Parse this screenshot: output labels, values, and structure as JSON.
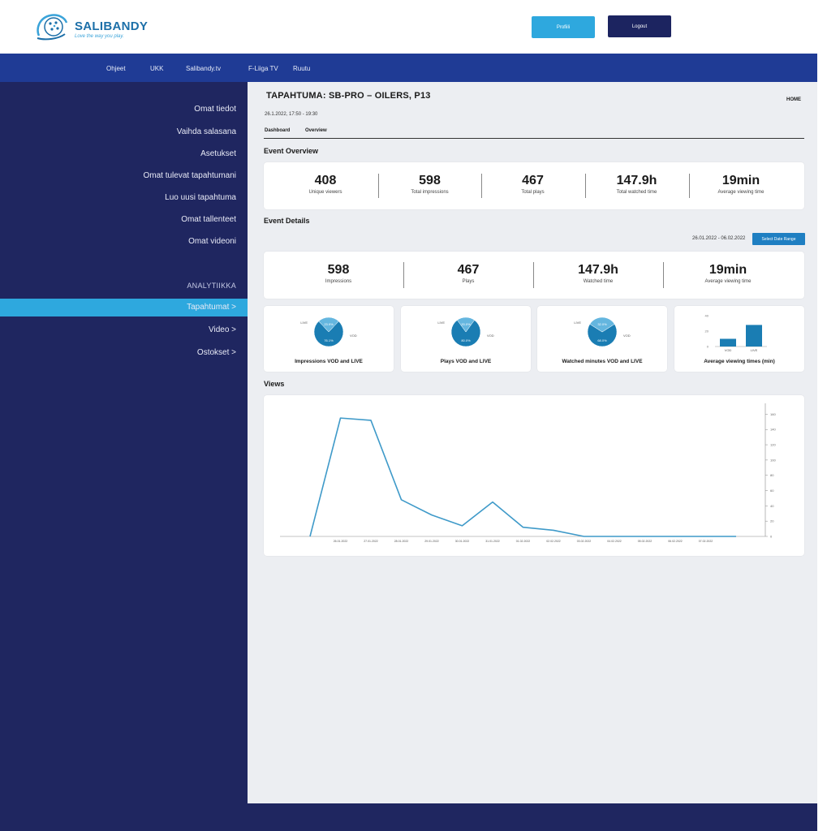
{
  "brand": {
    "name": "SALIBANDY",
    "tagline": "Love the way you play."
  },
  "header": {
    "profile_label": "Profiili",
    "logout_label": "Logout"
  },
  "topnav": [
    "Ohjeet",
    "UKK",
    "Salibandy.tv",
    "F-Liiga TV",
    "Ruutu"
  ],
  "sidebar": {
    "items": [
      "Omat tiedot",
      "Vaihda salasana",
      "Asetukset",
      "Omat tulevat tapahtumani",
      "Luo uusi tapahtuma",
      "Omat tallenteet",
      "Omat videoni"
    ],
    "section_label": "ANALYTIIKKA",
    "analytics_items": [
      "Tapahtumat >",
      "Video >",
      "Ostokset >"
    ]
  },
  "page": {
    "title": "TAPAHTUMA:  SB-PRO – OILERS,  P13",
    "home_link": "HOME",
    "date_time": "26.1.2022, 17:50 - 19:30",
    "tabs": [
      "Dashboard",
      "Overview"
    ]
  },
  "overview": {
    "title": "Event Overview",
    "stats": [
      {
        "value": "408",
        "label": "Unique viewers"
      },
      {
        "value": "598",
        "label": "Total impressions"
      },
      {
        "value": "467",
        "label": "Total plays"
      },
      {
        "value": "147.9h",
        "label": "Total watched time"
      },
      {
        "value": "19min",
        "label": "Average viewing time"
      }
    ]
  },
  "details": {
    "title": "Event Details",
    "date_range": "26.01.2022 - 06.02.2022",
    "range_button": "Select Date Range",
    "stats": [
      {
        "value": "598",
        "label": "Impressions"
      },
      {
        "value": "467",
        "label": "Plays"
      },
      {
        "value": "147.9h",
        "label": "Watched time"
      },
      {
        "value": "19min",
        "label": "Average viewing time"
      }
    ]
  },
  "mini_charts": [
    {
      "title": "Impressions VOD and LIVE"
    },
    {
      "title": "Plays VOD and LIVE"
    },
    {
      "title": "Watched minutes VOD and LIVE"
    },
    {
      "title": "Average viewing times (min)"
    }
  ],
  "views": {
    "title": "Views"
  },
  "colors": {
    "navy": "#1f2660",
    "nav_blue": "#1f3b95",
    "accent": "#2ea8de",
    "pie_dark": "#1a7db3",
    "pie_light": "#64b6df",
    "line": "#3f9ac9"
  },
  "chart_data": [
    {
      "type": "pie",
      "title": "Impressions VOD and LIVE",
      "slices": [
        {
          "name": "LIVE",
          "value": 76.1
        },
        {
          "name": "VOD",
          "value": 23.9
        }
      ]
    },
    {
      "type": "pie",
      "title": "Plays VOD and LIVE",
      "slices": [
        {
          "name": "LIVE",
          "value": 80
        },
        {
          "name": "VOD",
          "value": 20
        }
      ]
    },
    {
      "type": "pie",
      "title": "Watched minutes VOD and LIVE",
      "slices": [
        {
          "name": "LIVE",
          "value": 68
        },
        {
          "name": "VOD",
          "value": 32
        }
      ]
    },
    {
      "type": "bar",
      "title": "Average viewing times (min)",
      "categories": [
        "VOD",
        "LIVE"
      ],
      "values": [
        10,
        28
      ],
      "ylim": [
        0,
        40
      ]
    },
    {
      "type": "line",
      "title": "Views",
      "x": [
        "",
        "26.01.2022",
        "27.01.2022",
        "28.01.2022",
        "29.01.2022",
        "30.01.2022",
        "31.01.2022",
        "01.02.2022",
        "02.02.2022",
        "03.02.2022",
        "04.02.2022",
        "05.02.2022",
        "06.02.2022",
        "07.02.2022",
        ""
      ],
      "values": [
        0,
        155,
        152,
        48,
        28,
        14,
        45,
        12,
        8,
        0,
        0,
        0,
        0,
        0,
        0
      ],
      "ylim": [
        0,
        170
      ],
      "yticks": [
        0,
        20,
        40,
        60,
        80,
        100,
        120,
        140,
        160
      ],
      "y_axis_side": "right",
      "grid": false
    }
  ]
}
